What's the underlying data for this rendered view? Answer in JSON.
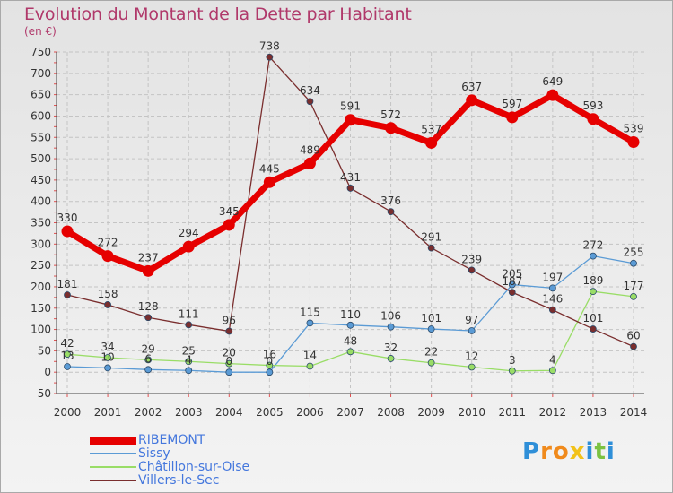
{
  "title": "Evolution du Montant de la Dette par Habitant",
  "unit": "(en €)",
  "brand": {
    "letters": [
      "P",
      "r",
      "o",
      "x",
      "i",
      "t",
      "i"
    ],
    "colors": [
      "#2f8fd8",
      "#f08a1c",
      "#f08a1c",
      "#f2c21a",
      "#2f8fd8",
      "#7cc242",
      "#2f8fd8"
    ]
  },
  "chart_data": {
    "type": "line",
    "x": [
      "2000",
      "2001",
      "2002",
      "2003",
      "2004",
      "2005",
      "2006",
      "2007",
      "2008",
      "2009",
      "2010",
      "2011",
      "2012",
      "2013",
      "2014"
    ],
    "ylim": [
      -50,
      750
    ],
    "yticks": [
      -50,
      0,
      50,
      100,
      150,
      200,
      250,
      300,
      350,
      400,
      450,
      500,
      550,
      600,
      650,
      700,
      750
    ],
    "grid": true,
    "series": [
      {
        "name": "RIBEMONT",
        "color": "#e60000",
        "bold": true,
        "values": [
          330,
          272,
          237,
          294,
          345,
          445,
          489,
          591,
          572,
          537,
          637,
          597,
          649,
          593,
          539
        ],
        "labels": [
          "330",
          "272",
          "237",
          "294",
          "345",
          "445",
          "489",
          "591",
          "572",
          "537",
          "637",
          "597",
          "649",
          "593",
          "539"
        ]
      },
      {
        "name": "Sissy",
        "color": "#5b9bd5",
        "bold": false,
        "values": [
          13,
          10,
          6,
          4,
          0,
          0,
          115,
          110,
          106,
          101,
          97,
          205,
          197,
          272,
          255
        ],
        "labels": [
          "13",
          "10",
          "6",
          "4",
          "0",
          "0",
          "115",
          "110",
          "106",
          "101",
          "97",
          "205",
          "197",
          "272",
          "255"
        ]
      },
      {
        "name": "Châtillon-sur-Oise",
        "color": "#99dd66",
        "bold": false,
        "values": [
          42,
          34,
          29,
          25,
          20,
          16,
          14,
          48,
          32,
          22,
          12,
          3,
          4,
          189,
          177
        ],
        "labels": [
          "42",
          "34",
          "29",
          "25",
          "20",
          "16",
          "14",
          "48",
          "32",
          "22",
          "12",
          "3",
          "4",
          "189",
          "177"
        ]
      },
      {
        "name": "Villers-le-Sec",
        "color": "#7a2e2e",
        "bold": false,
        "values": [
          181,
          158,
          128,
          111,
          96,
          738,
          634,
          431,
          376,
          291,
          239,
          187,
          146,
          101,
          60
        ],
        "labels": [
          "181",
          "158",
          "128",
          "111",
          "96",
          "738",
          "634",
          "431",
          "376",
          "291",
          "239",
          "187",
          "146",
          "101",
          "60"
        ]
      }
    ]
  }
}
